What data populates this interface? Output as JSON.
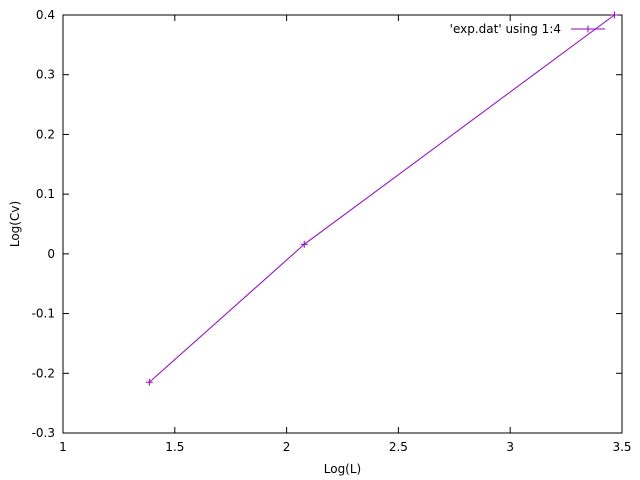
{
  "chart_data": {
    "type": "line",
    "xlabel": "Log(L)",
    "ylabel": "Log(Cv)",
    "xlim": [
      1,
      3.5
    ],
    "ylim": [
      -0.3,
      0.4
    ],
    "x_ticks": [
      1,
      1.5,
      2,
      2.5,
      3,
      3.5
    ],
    "x_tick_labels": [
      "1",
      "1.5",
      "2",
      "2.5",
      "3",
      "3.5"
    ],
    "y_ticks": [
      -0.3,
      -0.2,
      -0.1,
      0,
      0.1,
      0.2,
      0.3,
      0.4
    ],
    "y_tick_labels": [
      "-0.3",
      "-0.2",
      "-0.1",
      "0",
      "0.1",
      "0.2",
      "0.3",
      "0.4"
    ],
    "grid": false,
    "legend": {
      "position": "top-right"
    },
    "series": [
      {
        "name": "'exp.dat' using 1:4",
        "color": "#9400d3",
        "marker": "plus",
        "points": [
          {
            "x": 1.386,
            "y": -0.215
          },
          {
            "x": 2.079,
            "y": 0.016
          },
          {
            "x": 3.466,
            "y": 0.4
          }
        ]
      }
    ]
  }
}
